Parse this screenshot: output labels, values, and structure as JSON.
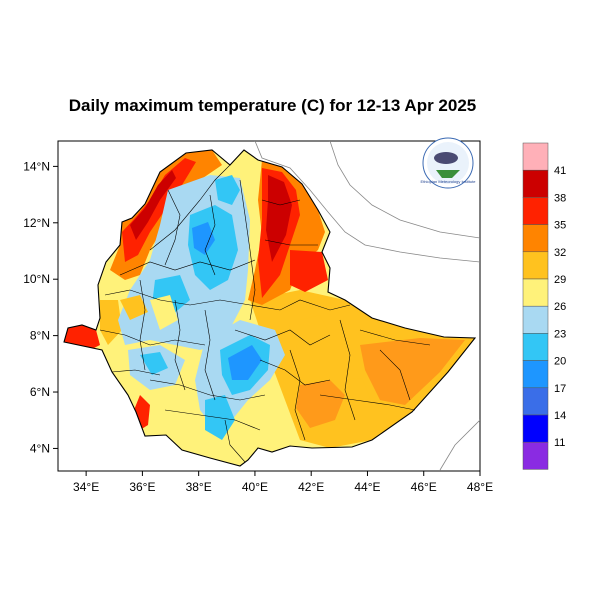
{
  "title": "Daily maximum temperature (C) for 12-13 Apr 2025",
  "map": {
    "lon_range": [
      33,
      48
    ],
    "lat_range": [
      3.2,
      14.9
    ],
    "x_ticks": [
      34,
      36,
      38,
      40,
      42,
      44,
      46,
      48
    ],
    "x_tick_labels": [
      "34°E",
      "36°E",
      "38°E",
      "40°E",
      "42°E",
      "44°E",
      "46°E",
      "48°E"
    ],
    "y_ticks": [
      4,
      6,
      8,
      10,
      12,
      14
    ],
    "y_tick_labels": [
      "4°N",
      "6°N",
      "8°N",
      "10°N",
      "12°N",
      "14°N"
    ]
  },
  "colorbar": {
    "labels": [
      "11",
      "14",
      "17",
      "20",
      "23",
      "26",
      "29",
      "32",
      "35",
      "38",
      "41"
    ],
    "colors": [
      "#8a2be2",
      "#0000ff",
      "#3a6ee8",
      "#1e96ff",
      "#33c6f5",
      "#a9d9f2",
      "#fff27a",
      "#ffc21f",
      "#ff8400",
      "#ff2200",
      "#cc0000",
      "#ffb0b8"
    ]
  },
  "logo": {
    "org_text": "Ethiopian Meteorology Institute"
  }
}
